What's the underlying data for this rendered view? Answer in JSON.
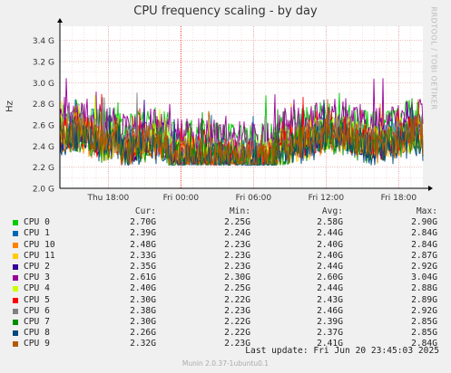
{
  "chart_data": {
    "type": "line",
    "title": "CPU frequency scaling - by day",
    "ylabel": "Hz",
    "ylim": [
      2.0,
      3.5
    ],
    "yticks": [
      {
        "v": 2.0,
        "label": "2.0 G"
      },
      {
        "v": 2.2,
        "label": "2.2 G"
      },
      {
        "v": 2.4,
        "label": "2.4 G"
      },
      {
        "v": 2.6,
        "label": "2.6 G"
      },
      {
        "v": 2.8,
        "label": "2.8 G"
      },
      {
        "v": 3.0,
        "label": "3.0 G"
      },
      {
        "v": 3.2,
        "label": "3.2 G"
      },
      {
        "v": 3.4,
        "label": "3.4 G"
      }
    ],
    "xlim": [
      0,
      30
    ],
    "xticks": [
      {
        "v": 4,
        "label": "Thu 18:00"
      },
      {
        "v": 10,
        "label": "Fri 00:00"
      },
      {
        "v": 16,
        "label": "Fri 06:00"
      },
      {
        "v": 22,
        "label": "Fri 12:00"
      },
      {
        "v": 28,
        "label": "Fri 18:00"
      }
    ],
    "midnight": 10,
    "grid": true,
    "series": [
      {
        "name": "CPU 0",
        "color": "#00cc00",
        "cur": "2.70G",
        "min": "2.25G",
        "avg": "2.58G",
        "max": "2.90G"
      },
      {
        "name": "CPU 1",
        "color": "#0066b3",
        "cur": "2.39G",
        "min": "2.24G",
        "avg": "2.44G",
        "max": "2.84G"
      },
      {
        "name": "CPU 10",
        "color": "#ff8000",
        "cur": "2.48G",
        "min": "2.23G",
        "avg": "2.40G",
        "max": "2.84G"
      },
      {
        "name": "CPU 11",
        "color": "#ffcc00",
        "cur": "2.33G",
        "min": "2.23G",
        "avg": "2.40G",
        "max": "2.87G"
      },
      {
        "name": "CPU 2",
        "color": "#330099",
        "cur": "2.35G",
        "min": "2.23G",
        "avg": "2.44G",
        "max": "2.92G"
      },
      {
        "name": "CPU 3",
        "color": "#990099",
        "cur": "2.61G",
        "min": "2.30G",
        "avg": "2.60G",
        "max": "3.04G"
      },
      {
        "name": "CPU 4",
        "color": "#ccff00",
        "cur": "2.40G",
        "min": "2.25G",
        "avg": "2.44G",
        "max": "2.88G"
      },
      {
        "name": "CPU 5",
        "color": "#ff0000",
        "cur": "2.30G",
        "min": "2.22G",
        "avg": "2.43G",
        "max": "2.89G"
      },
      {
        "name": "CPU 6",
        "color": "#808080",
        "cur": "2.38G",
        "min": "2.23G",
        "avg": "2.46G",
        "max": "2.92G"
      },
      {
        "name": "CPU 7",
        "color": "#008f00",
        "cur": "2.30G",
        "min": "2.22G",
        "avg": "2.39G",
        "max": "2.85G"
      },
      {
        "name": "CPU 8",
        "color": "#00487d",
        "cur": "2.26G",
        "min": "2.22G",
        "avg": "2.37G",
        "max": "2.85G"
      },
      {
        "name": "CPU 9",
        "color": "#b35a00",
        "cur": "2.32G",
        "min": "2.23G",
        "avg": "2.41G",
        "max": "2.84G"
      }
    ]
  },
  "legend_headers": {
    "cur": "Cur:",
    "min": "Min:",
    "avg": "Avg:",
    "max": "Max:"
  },
  "last_update": "Last update: Fri Jun 20 23:45:03 2025",
  "side_text": "RRDTOOL / TOBI OETIKER",
  "footer": "Munin 2.0.37-1ubuntu0.1"
}
